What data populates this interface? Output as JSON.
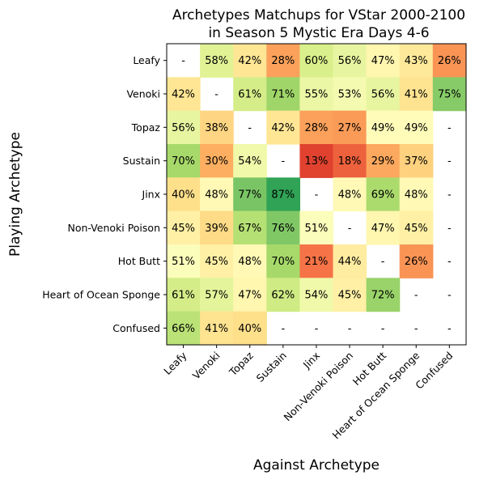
{
  "chart_data": {
    "type": "heatmap",
    "title_line1": "Archetypes Matchups for VStar 2000-2100",
    "title_line2": "in Season 5 Mystic Era Days 4-6",
    "xlabel": "Against Archetype",
    "ylabel": "Playing Archetype",
    "rows": [
      "Leafy",
      "Venoki",
      "Topaz",
      "Sustain",
      "Jinx",
      "Non-Venoki Poison",
      "Hot Butt",
      "Heart of Ocean Sponge",
      "Confused"
    ],
    "columns": [
      "Leafy",
      "Venoki",
      "Topaz",
      "Sustain",
      "Jinx",
      "Non-Venoki Poison",
      "Hot Butt",
      "Heart of Ocean Sponge",
      "Confused"
    ],
    "values": [
      [
        null,
        58,
        42,
        28,
        60,
        56,
        47,
        43,
        26
      ],
      [
        42,
        null,
        61,
        71,
        55,
        53,
        56,
        41,
        75
      ],
      [
        56,
        38,
        null,
        42,
        28,
        27,
        49,
        49,
        null
      ],
      [
        70,
        30,
        54,
        null,
        13,
        18,
        29,
        37,
        null
      ],
      [
        40,
        48,
        77,
        87,
        null,
        48,
        69,
        48,
        null
      ],
      [
        45,
        39,
        67,
        76,
        51,
        null,
        47,
        45,
        null
      ],
      [
        51,
        45,
        48,
        70,
        21,
        44,
        null,
        26,
        null
      ],
      [
        61,
        57,
        47,
        62,
        54,
        45,
        72,
        null,
        null
      ],
      [
        66,
        41,
        40,
        null,
        null,
        null,
        null,
        null,
        null
      ]
    ],
    "value_suffix": "%",
    "missing_label": "-",
    "colormap": "RdYlGn",
    "vmin": 0,
    "vmax": 100,
    "grid": false
  }
}
